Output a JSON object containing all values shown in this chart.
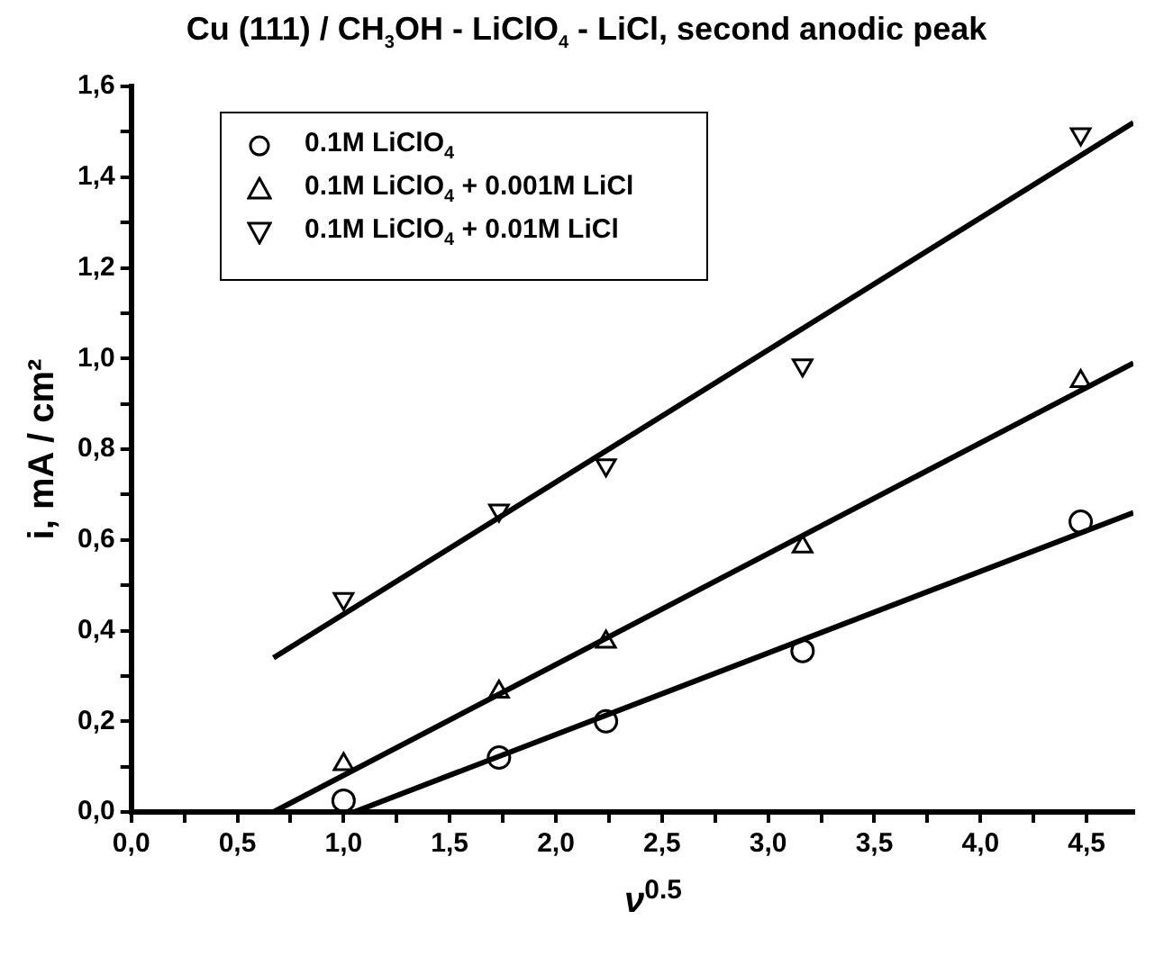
{
  "chart_data": {
    "type": "scatter",
    "title": "Cu (111) / CH$_{3}$OH - LiClO$_{4}$ - LiCl, second anodic peak",
    "xlabel": "ν$^{0.5}$",
    "ylabel": "i, mA / cm²",
    "x": [
      1,
      1.732,
      2.236,
      3.162,
      4.472
    ],
    "series": [
      {
        "name": "0.1M LiClO$_{4}$",
        "color": "#000000",
        "marker": "circle",
        "values": [
          0.025,
          0.12,
          0.2,
          0.355,
          0.64
        ]
      },
      {
        "name": "0.1M LiClO$_{4}$ + 0.001M LiCl",
        "color": "#000000",
        "marker": "triangle",
        "values": [
          0.105,
          0.265,
          0.375,
          0.585,
          0.95
        ]
      },
      {
        "name": "0.1M LiClO$_{4}$ + 0.01M LiCl",
        "color": "#000000",
        "marker": "triangle-down",
        "values": [
          0.47,
          0.665,
          0.765,
          0.985,
          1.495
        ]
      },
      {
        "type": "line",
        "color": "#000000",
        "marker": "none",
        "x": [
          1.05,
          4.72
        ],
        "values": [
          0,
          0.66
        ]
      },
      {
        "type": "line",
        "color": "#000000",
        "marker": "none",
        "x": [
          0.67,
          4.72
        ],
        "values": [
          0,
          0.99
        ]
      },
      {
        "type": "line",
        "color": "#000000",
        "marker": "none",
        "x": [
          0.67,
          4.72
        ],
        "values": [
          0.34,
          1.52
        ]
      }
    ],
    "xlim": [
      0,
      4.72
    ],
    "ylim": [
      0,
      1.6
    ],
    "xticks": [
      {
        "value": 0,
        "label": "0,0"
      },
      {
        "value": 0.25,
        "label": null
      },
      {
        "value": 0.5,
        "label": "0,5"
      },
      {
        "value": 0.75,
        "label": null
      },
      {
        "value": 1,
        "label": "1,0"
      },
      {
        "value": 1.25,
        "label": null
      },
      {
        "value": 1.5,
        "label": "1,5"
      },
      {
        "value": 1.75,
        "label": null
      },
      {
        "value": 2,
        "label": "2,0"
      },
      {
        "value": 2.25,
        "label": null
      },
      {
        "value": 2.5,
        "label": "2,5"
      },
      {
        "value": 2.75,
        "label": null
      },
      {
        "value": 3,
        "label": "3,0"
      },
      {
        "value": 3.25,
        "label": null
      },
      {
        "value": 3.5,
        "label": "3,5"
      },
      {
        "value": 3.75,
        "label": null
      },
      {
        "value": 4,
        "label": "4,0"
      },
      {
        "value": 4.25,
        "label": null
      },
      {
        "value": 4.5,
        "label": "4,5"
      }
    ],
    "yticks": [
      {
        "value": 0,
        "label": "0,0"
      },
      {
        "value": 0.1,
        "label": null
      },
      {
        "value": 0.2,
        "label": "0,2"
      },
      {
        "value": 0.3,
        "label": null
      },
      {
        "value": 0.4,
        "label": "0,4"
      },
      {
        "value": 0.5,
        "label": null
      },
      {
        "value": 0.6,
        "label": "0,6"
      },
      {
        "value": 0.7,
        "label": null
      },
      {
        "value": 0.8,
        "label": "0,8"
      },
      {
        "value": 0.9,
        "label": null
      },
      {
        "value": 1,
        "label": "1,0"
      },
      {
        "value": 1.1,
        "label": null
      },
      {
        "value": 1.2,
        "label": "1,2"
      },
      {
        "value": 1.3,
        "label": null
      },
      {
        "value": 1.4,
        "label": "1,4"
      },
      {
        "value": 1.5,
        "label": null
      },
      {
        "value": 1.6,
        "label": "1,6"
      }
    ],
    "grid": false,
    "legend": "top left"
  }
}
